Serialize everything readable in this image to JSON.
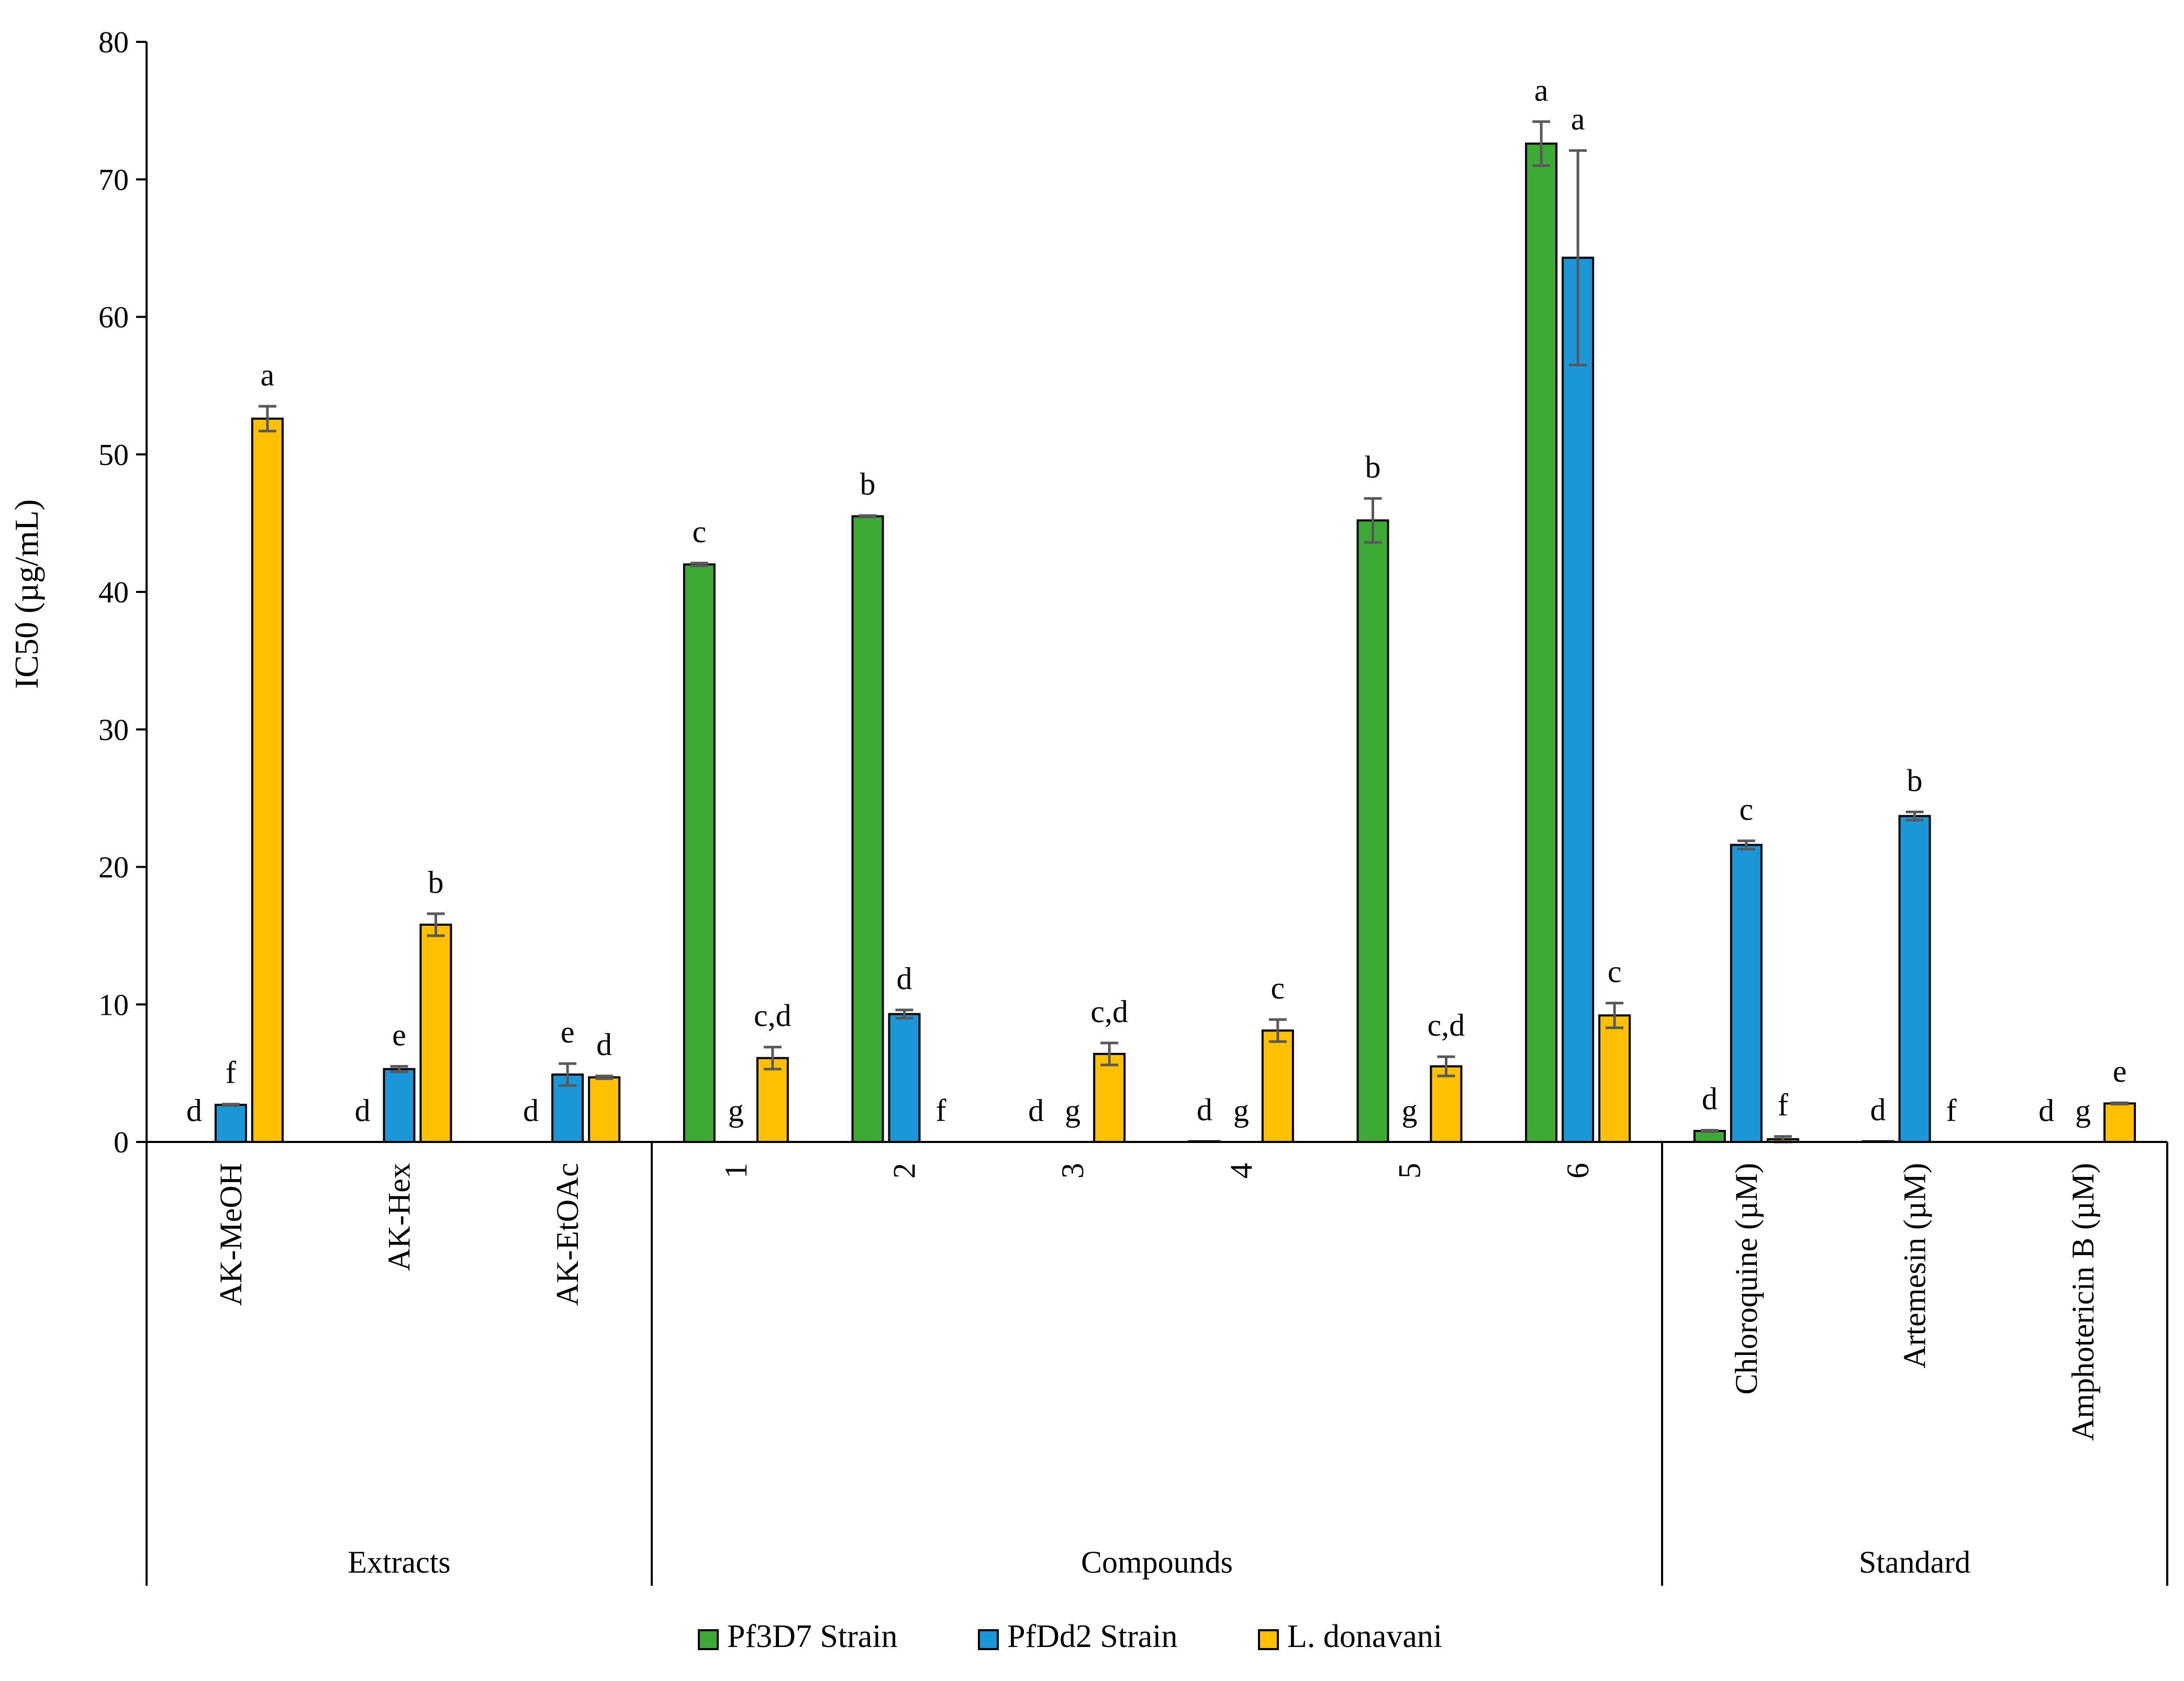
{
  "chart_data": {
    "type": "bar",
    "ylabel": "IC50 (µg/mL)",
    "ylim": [
      0,
      80
    ],
    "yticks": [
      0,
      10,
      20,
      30,
      40,
      50,
      60,
      70,
      80
    ],
    "grid": false,
    "legend_position": "bottom-center",
    "categories": [
      "AK-MeOH",
      "AK-Hex",
      "AK-EtOAc",
      "1",
      "2",
      "3",
      "4",
      "5",
      "6",
      "Chloroquine (µM)",
      "Artemesin (µM)",
      "Amphotericin B (µM)"
    ],
    "groups": [
      {
        "label": "Extracts",
        "size": 3
      },
      {
        "label": "Compounds",
        "size": 6
      },
      {
        "label": "Standard",
        "size": 3
      }
    ],
    "series": [
      {
        "name": "Pf3D7 Strain",
        "color": "#3DAA35",
        "values": [
          0,
          0,
          0,
          42.0,
          45.5,
          0,
          0.05,
          45.2,
          72.6,
          0.8,
          0.05,
          0
        ],
        "errors": [
          0,
          0,
          0,
          0.1,
          0.05,
          0,
          0,
          1.6,
          1.6,
          0.05,
          0,
          0
        ],
        "sig": [
          "d",
          "d",
          "d",
          "c",
          "b",
          "d",
          "d",
          "b",
          "a",
          "d",
          "d",
          "d"
        ]
      },
      {
        "name": "PfDd2 Strain",
        "color": "#1B96D8",
        "values": [
          2.7,
          5.3,
          4.9,
          0,
          9.3,
          0,
          0,
          0,
          64.3,
          21.6,
          23.7,
          0
        ],
        "errors": [
          0.05,
          0.2,
          0.8,
          0,
          0.3,
          0,
          0,
          0,
          7.8,
          0.3,
          0.3,
          0
        ],
        "sig": [
          "f",
          "e",
          "e",
          "g",
          "d",
          "g",
          "g",
          "g",
          "a",
          "c",
          "b",
          "g"
        ]
      },
      {
        "name": "L. donavani",
        "color": "#FFC000",
        "values": [
          52.6,
          15.8,
          4.7,
          6.1,
          0,
          6.4,
          8.1,
          5.5,
          9.2,
          0.2,
          0,
          2.8
        ],
        "errors": [
          0.9,
          0.8,
          0.1,
          0.8,
          0,
          0.8,
          0.8,
          0.7,
          0.9,
          0.2,
          0,
          0.05
        ],
        "sig": [
          "a",
          "b",
          "d",
          "c,d",
          "f",
          "c,d",
          "c",
          "c,d",
          "c",
          "f",
          "f",
          "e"
        ]
      }
    ]
  }
}
